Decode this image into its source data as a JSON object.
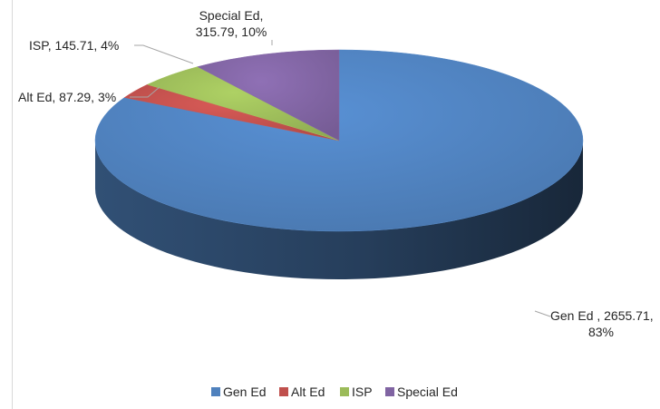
{
  "chart_data": {
    "type": "pie",
    "title": "",
    "style": "3d",
    "legend_position": "bottom",
    "slices": [
      {
        "name": "Gen Ed",
        "value": 2655.71,
        "percent": 83,
        "label_line1": "Gen Ed , 2655.71,",
        "label_line2": "83%",
        "color": "#4f81bd"
      },
      {
        "name": "Alt Ed",
        "value": 87.29,
        "percent": 3,
        "label_line1": "Alt Ed, 87.29, 3%",
        "label_line2": "",
        "color": "#c0504d"
      },
      {
        "name": "ISP",
        "value": 145.71,
        "percent": 4,
        "label_line1": "ISP, 145.71, 4%",
        "label_line2": "",
        "color": "#9bbb59"
      },
      {
        "name": "Special Ed",
        "value": 315.79,
        "percent": 10,
        "label_line1": "Special Ed,",
        "label_line2": "315.79, 10%",
        "color": "#8064a2"
      }
    ]
  }
}
